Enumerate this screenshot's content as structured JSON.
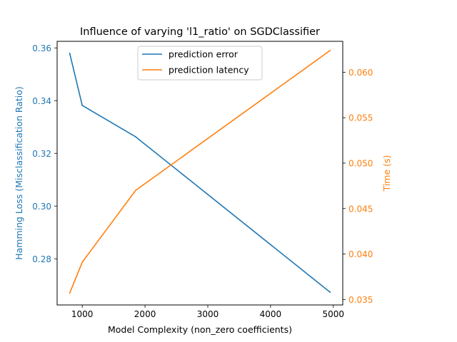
{
  "chart_data": {
    "type": "line",
    "title": "Influence of varying 'l1_ratio' on SGDClassifier",
    "xlabel": "Model Complexity (non_zero coefficients)",
    "ylabel_left": "Hamming Loss (Misclassification Ratio)",
    "ylabel_right": "Time (s)",
    "xlim": [
      600,
      5150
    ],
    "ylim_left": [
      0.2625,
      0.3625
    ],
    "ylim_right": [
      0.0344,
      0.0634
    ],
    "xticks": [
      1000,
      2000,
      3000,
      4000,
      5000
    ],
    "xtick_labels": [
      "1000",
      "2000",
      "3000",
      "4000",
      "5000"
    ],
    "yticks_left": [
      0.28,
      0.3,
      0.32,
      0.34,
      0.36
    ],
    "ytick_labels_left": [
      "0.28",
      "0.30",
      "0.32",
      "0.34",
      "0.36"
    ],
    "yticks_right": [
      0.035,
      0.04,
      0.045,
      0.05,
      0.055,
      0.06
    ],
    "ytick_labels_right": [
      "0.035",
      "0.040",
      "0.045",
      "0.050",
      "0.055",
      "0.060"
    ],
    "grid": false,
    "legend_position": "top-center",
    "series": [
      {
        "name": "prediction error",
        "axis": "left",
        "color": "#1f77b4",
        "x": [
          800,
          1000,
          1850,
          4950
        ],
        "y": [
          0.358,
          0.3382,
          0.3263,
          0.2673
        ]
      },
      {
        "name": "prediction latency",
        "axis": "right",
        "color": "#ff7f0e",
        "x": [
          800,
          1000,
          1850,
          4950
        ],
        "y": [
          0.0357,
          0.0391,
          0.047,
          0.0624
        ]
      }
    ]
  }
}
